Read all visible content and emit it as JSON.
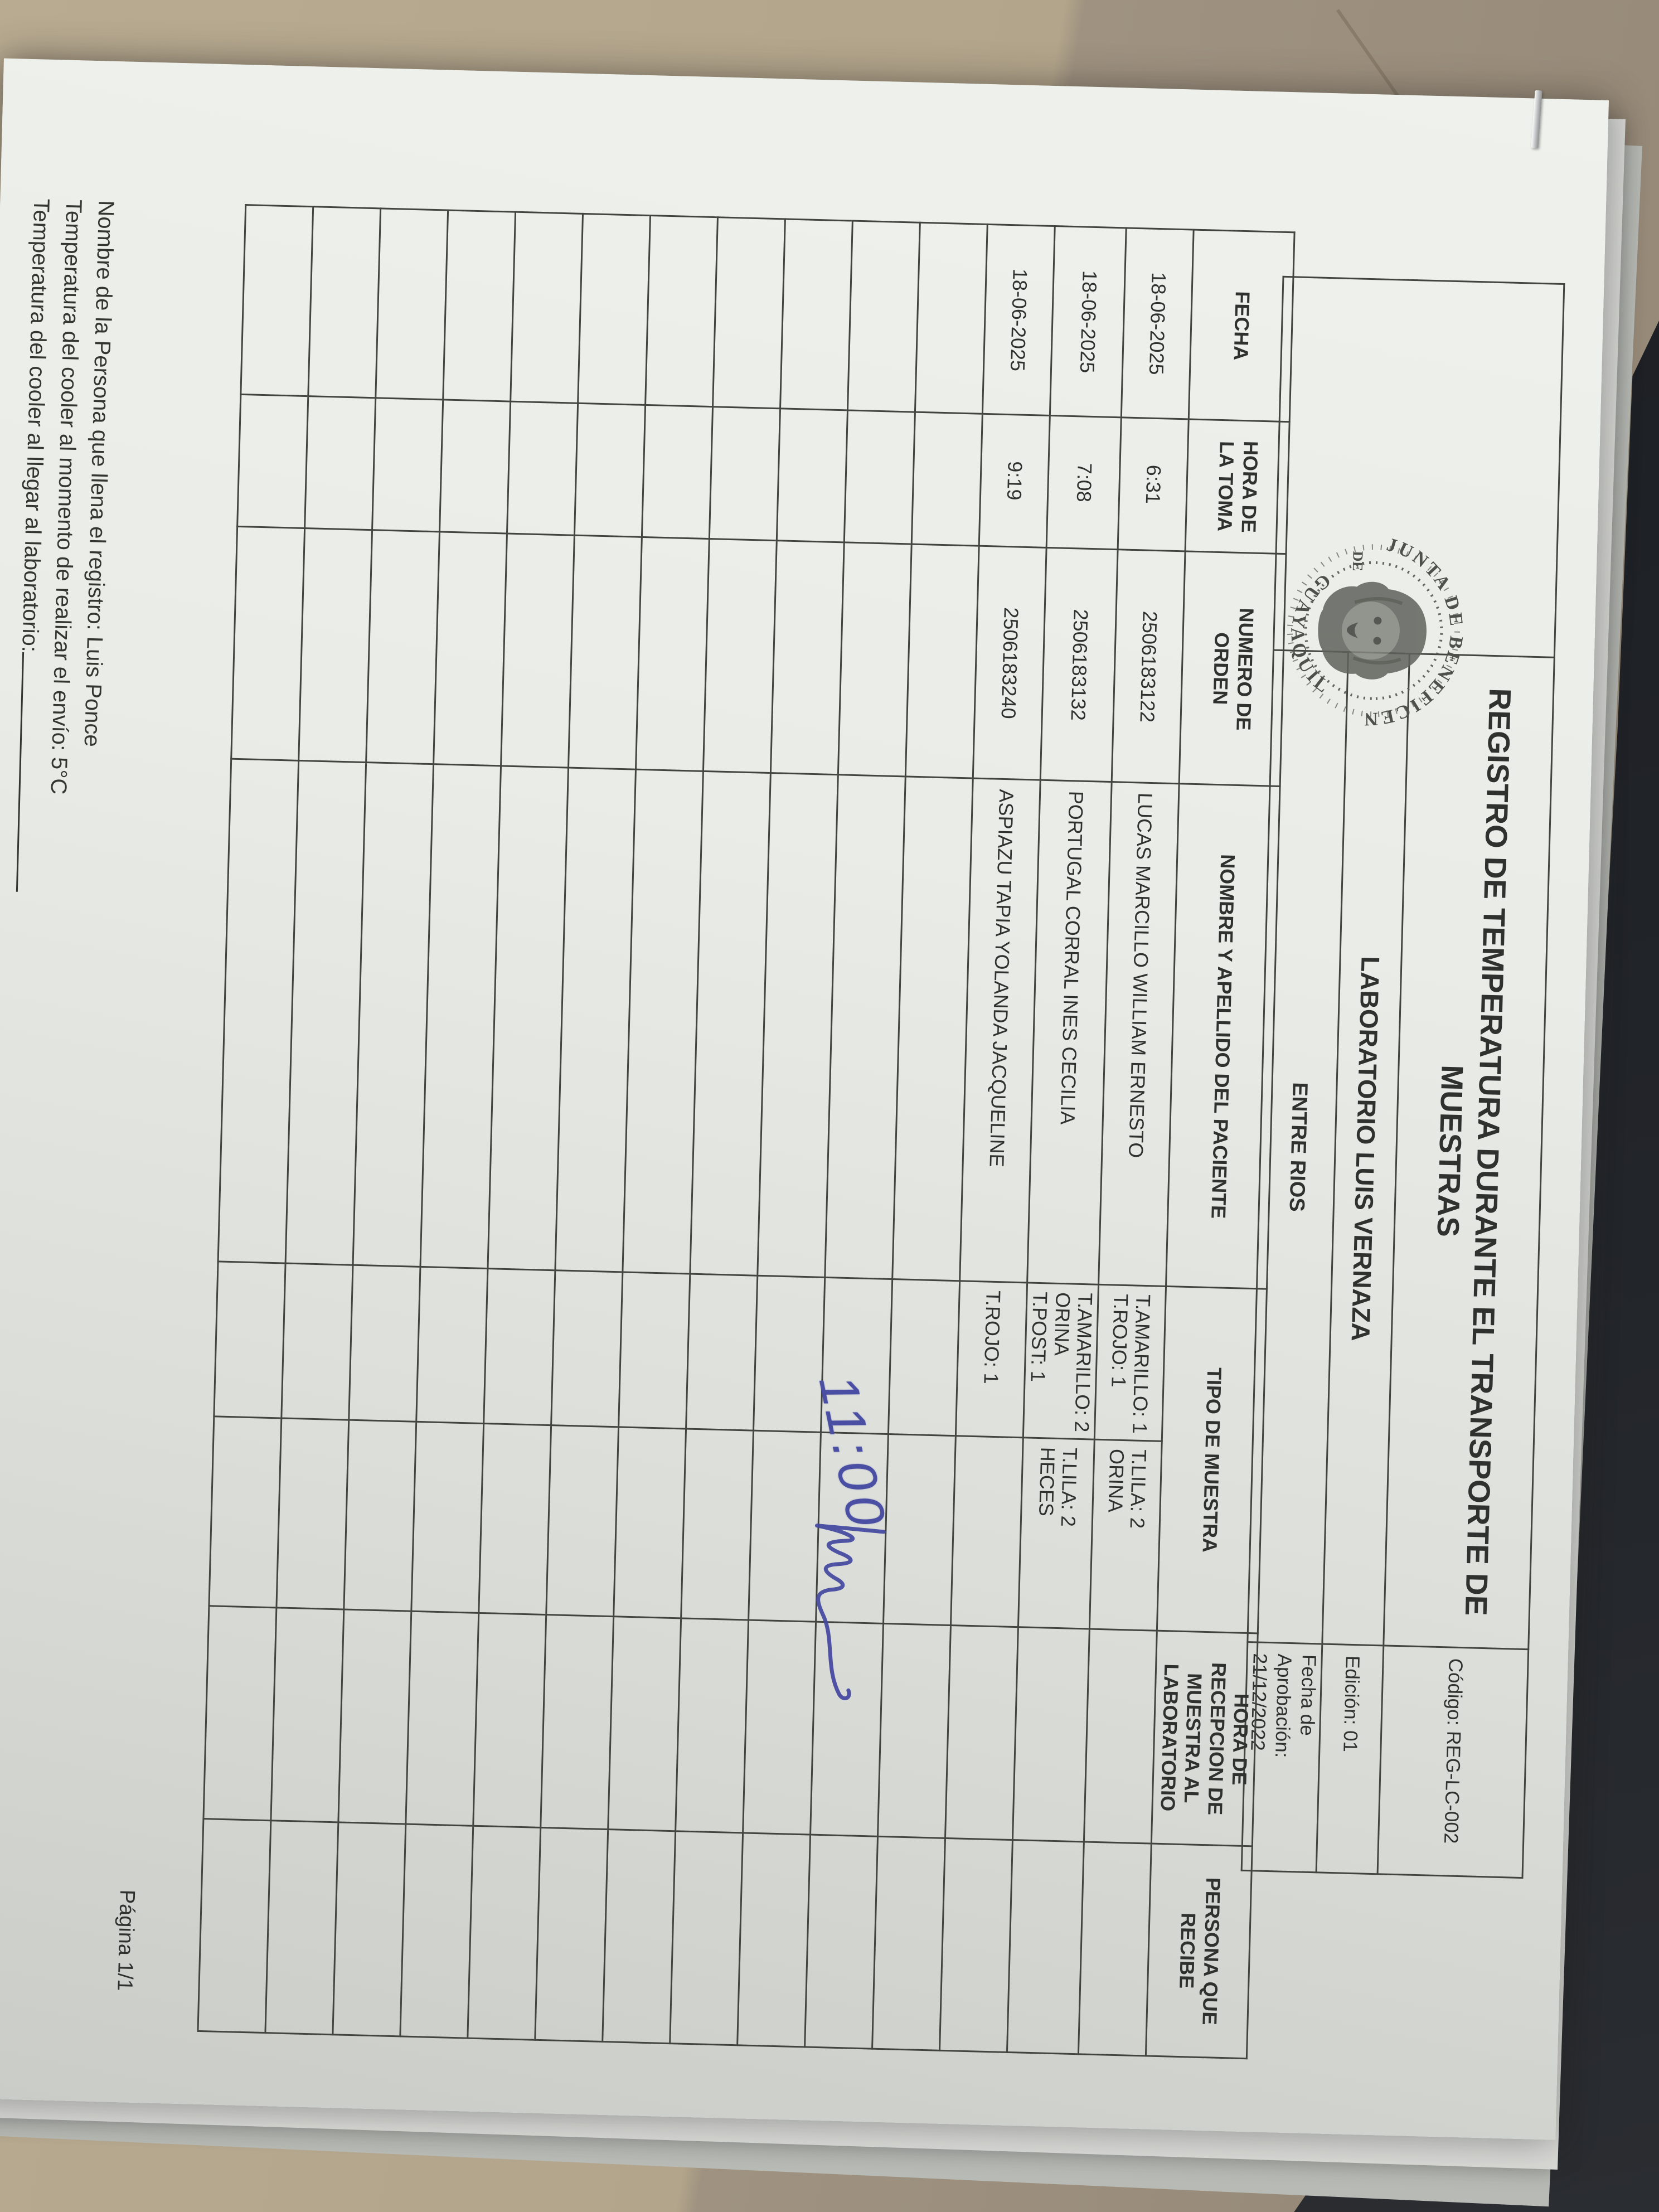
{
  "header": {
    "title": "REGISTRO DE TEMPERATURA DURANTE EL TRANSPORTE DE\nMUESTRAS",
    "laboratory": "LABORATORIO LUIS VERNAZA",
    "site": "ENTRE RIOS",
    "code_line": "Código:  REG-LC-002",
    "edition_line": "Edición:  01",
    "approval_line": "Fecha de\nAprobación:  21/12/2022",
    "seal": {
      "top_text": "JUNTA DE BENEFICENCIA",
      "left_text": "DE",
      "bottom_text": "GUAYAQUIL"
    }
  },
  "main_table": {
    "columns": [
      "FECHA",
      "HORA DE\nLA TOMA",
      "NUMERO DE\nORDEN",
      "NOMBRE Y APELLIDO DEL PACIENTE",
      "TIPO DE MUESTRA",
      "HORA DE\nRECEPCION DE\nMUESTRA AL\nLABORATORIO",
      "PERSONA QUE RECIBE"
    ],
    "rows": [
      [
        "18-06-2025",
        "6:31",
        "2506183122",
        "LUCAS MARCILLO WILLIAM ERNESTO",
        "T.AMARILLO: 1\nT.ROJO: 1",
        "T.LILA: 2\nORINA",
        "",
        ""
      ],
      [
        "18-06-2025",
        "7:08",
        "2506183132",
        "PORTUGAL CORRAL INES CECILIA",
        "T.AMARILLO: 2\nORINA\nT.POST: 1",
        "T.LILA: 2\nHECES",
        "",
        ""
      ],
      [
        "18-06-2025",
        "9:19",
        "2506183240",
        "ASPIAZU TAPIA YOLANDA JACQUELINE",
        "T.ROJO: 1",
        "",
        "",
        ""
      ],
      [
        "",
        "",
        "",
        "",
        "",
        "",
        "",
        ""
      ],
      [
        "",
        "",
        "",
        "",
        "",
        "",
        "",
        ""
      ],
      [
        "",
        "",
        "",
        "",
        "",
        "",
        "",
        ""
      ],
      [
        "",
        "",
        "",
        "",
        "",
        "",
        "",
        ""
      ],
      [
        "",
        "",
        "",
        "",
        "",
        "",
        "",
        ""
      ],
      [
        "",
        "",
        "",
        "",
        "",
        "",
        "",
        ""
      ],
      [
        "",
        "",
        "",
        "",
        "",
        "",
        "",
        ""
      ],
      [
        "",
        "",
        "",
        "",
        "",
        "",
        "",
        ""
      ],
      [
        "",
        "",
        "",
        "",
        "",
        "",
        "",
        ""
      ],
      [
        "",
        "",
        "",
        "",
        "",
        "",
        "",
        ""
      ],
      [
        "",
        "",
        "",
        "",
        "",
        "",
        "",
        ""
      ]
    ]
  },
  "handwriting": {
    "reception_time": "11:00"
  },
  "footer": {
    "line1": "Nombre de la Persona que llena el registro: Luis Ponce",
    "line2": "Temperatura del cooler al momento de realizar el envío: 5°C",
    "line3": "Temperatura del cooler al llegar al laboratorio:",
    "page": "Página 1/1"
  },
  "colors": {
    "paper": "#eaece8",
    "ink": "#2e312e",
    "grid": "#41443f",
    "handwriting_blue": "#4b4fa3",
    "background_beige": "#b3a58b",
    "dark_surface": "#1a1d21"
  }
}
